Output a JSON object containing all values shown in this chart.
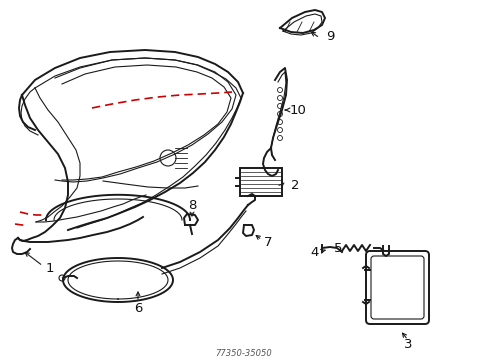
{
  "background": "#ffffff",
  "line_color": "#1a1a1a",
  "red_dash_color": "#cc0000",
  "label_color": "#111111",
  "figsize": [
    4.89,
    3.6
  ],
  "dpi": 100,
  "title": "77350-35050",
  "lw_main": 1.4,
  "lw_thin": 0.8,
  "lw_thick": 2.0,
  "label_fs": 9.5,
  "parts": {
    "panel_outer": {
      "x": [
        0.05,
        0.1,
        0.16,
        0.22,
        0.28,
        0.34,
        0.39,
        0.42,
        0.44,
        0.455,
        0.465,
        0.468,
        0.462,
        0.448,
        0.428,
        0.405,
        0.378,
        0.348,
        0.318,
        0.29,
        0.262,
        0.235,
        0.21,
        0.188,
        0.168,
        0.15,
        0.134,
        0.12,
        0.108,
        0.098,
        0.09,
        0.082,
        0.072,
        0.064,
        0.058,
        0.052,
        0.048,
        0.046,
        0.046,
        0.048,
        0.052,
        0.05
      ],
      "y": [
        0.88,
        0.9,
        0.908,
        0.905,
        0.898,
        0.888,
        0.875,
        0.862,
        0.848,
        0.832,
        0.815,
        0.796,
        0.775,
        0.754,
        0.734,
        0.715,
        0.7,
        0.688,
        0.678,
        0.672,
        0.668,
        0.668,
        0.67,
        0.675,
        0.683,
        0.693,
        0.706,
        0.72,
        0.735,
        0.75,
        0.764,
        0.778,
        0.792,
        0.806,
        0.82,
        0.833,
        0.845,
        0.857,
        0.868,
        0.877,
        0.884,
        0.88
      ]
    },
    "panel_inner": {
      "x": [
        0.06,
        0.1,
        0.16,
        0.22,
        0.28,
        0.34,
        0.385,
        0.412,
        0.432,
        0.446,
        0.456,
        0.459,
        0.454,
        0.44,
        0.422,
        0.4,
        0.374,
        0.346,
        0.317,
        0.289,
        0.262,
        0.236,
        0.212,
        0.19,
        0.17,
        0.153,
        0.138,
        0.124,
        0.112,
        0.102,
        0.093,
        0.085,
        0.076,
        0.068,
        0.062,
        0.057,
        0.053,
        0.05,
        0.05,
        0.054,
        0.06
      ],
      "y": [
        0.88,
        0.893,
        0.9,
        0.898,
        0.891,
        0.881,
        0.869,
        0.857,
        0.844,
        0.829,
        0.813,
        0.795,
        0.776,
        0.756,
        0.737,
        0.719,
        0.704,
        0.692,
        0.682,
        0.676,
        0.672,
        0.672,
        0.674,
        0.679,
        0.687,
        0.697,
        0.709,
        0.723,
        0.737,
        0.751,
        0.764,
        0.777,
        0.791,
        0.804,
        0.817,
        0.829,
        0.841,
        0.853,
        0.864,
        0.872,
        0.88
      ]
    }
  }
}
